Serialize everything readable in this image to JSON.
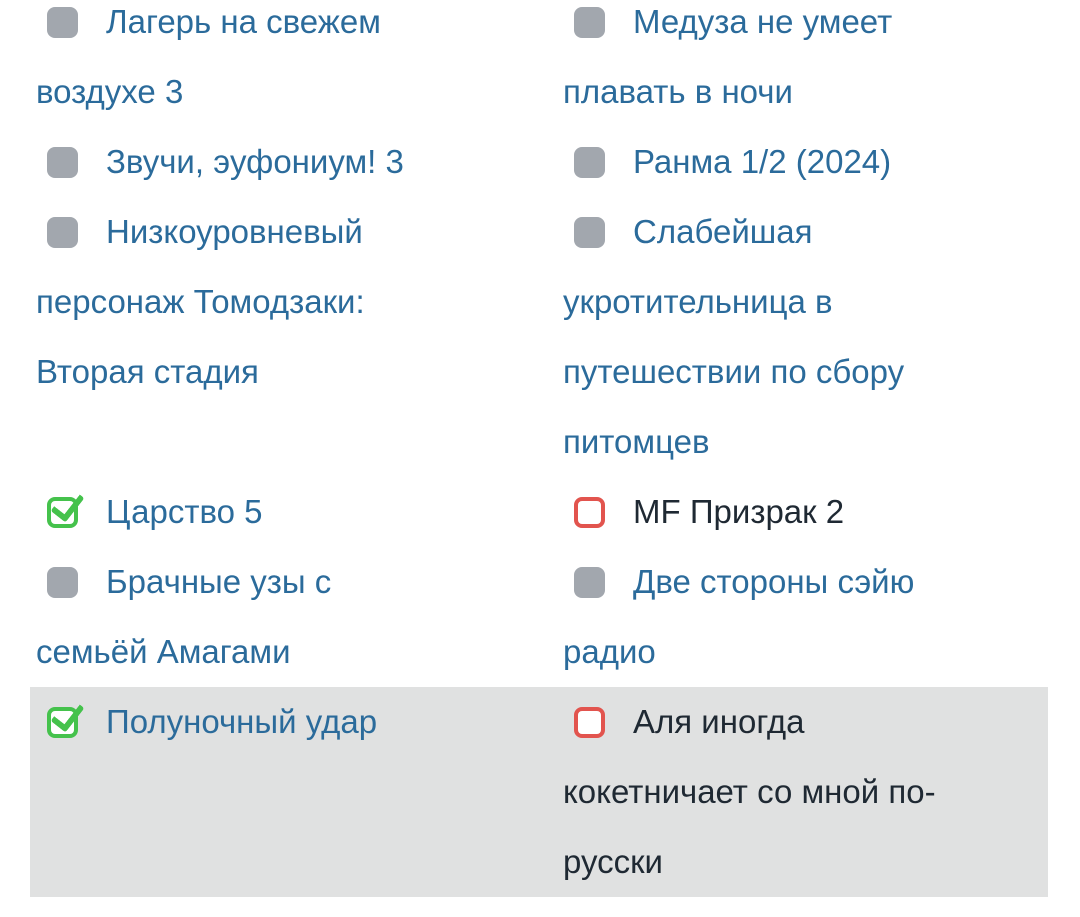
{
  "colors": {
    "link_blue": "#2b6b9b",
    "dark_text": "#1f2933",
    "checkbox_neutral": "#a2a7ae",
    "checkbox_checked": "#45c24c",
    "checkbox_unchecked": "#e2544e",
    "row_highlight": "#e0e1e1",
    "page_bg": "#ffffff"
  },
  "checkbox_states_legend": {
    "neutral": "gray filled square",
    "checked": "green outlined square with green check",
    "unchecked": "red outlined empty square"
  },
  "rows": [
    {
      "highlighted": false,
      "left": {
        "title": "Лагерь на свежем\nвоздухе 3",
        "state": "neutral"
      },
      "right": {
        "title": "Медуза не умеет\nплавать в ночи",
        "state": "neutral"
      }
    },
    {
      "highlighted": false,
      "left": {
        "title": "Звучи, эуфониум! 3",
        "state": "neutral"
      },
      "right": {
        "title": "Ранма 1/2 (2024)",
        "state": "neutral"
      }
    },
    {
      "highlighted": false,
      "left": {
        "title": "Низкоуровневый\nперсонаж Томодзаки:\nВторая стадия",
        "state": "neutral"
      },
      "right": {
        "title": "Слабейшая\nукротительница в\nпутешествии по сбору\nпитомцев",
        "state": "neutral"
      }
    },
    {
      "highlighted": false,
      "left": {
        "title": "Царство 5",
        "state": "checked"
      },
      "right": {
        "title": "MF Призрак 2",
        "state": "unchecked"
      }
    },
    {
      "highlighted": false,
      "left": {
        "title": "Брачные узы с\nсемьёй Амагами",
        "state": "neutral"
      },
      "right": {
        "title": "Две стороны сэйю\nрадио",
        "state": "neutral"
      }
    },
    {
      "highlighted": true,
      "left": {
        "title": "Полуночный удар",
        "state": "checked"
      },
      "right": {
        "title": "Аля иногда\nкокетничает со мной по-\nрусски",
        "state": "unchecked"
      }
    }
  ]
}
